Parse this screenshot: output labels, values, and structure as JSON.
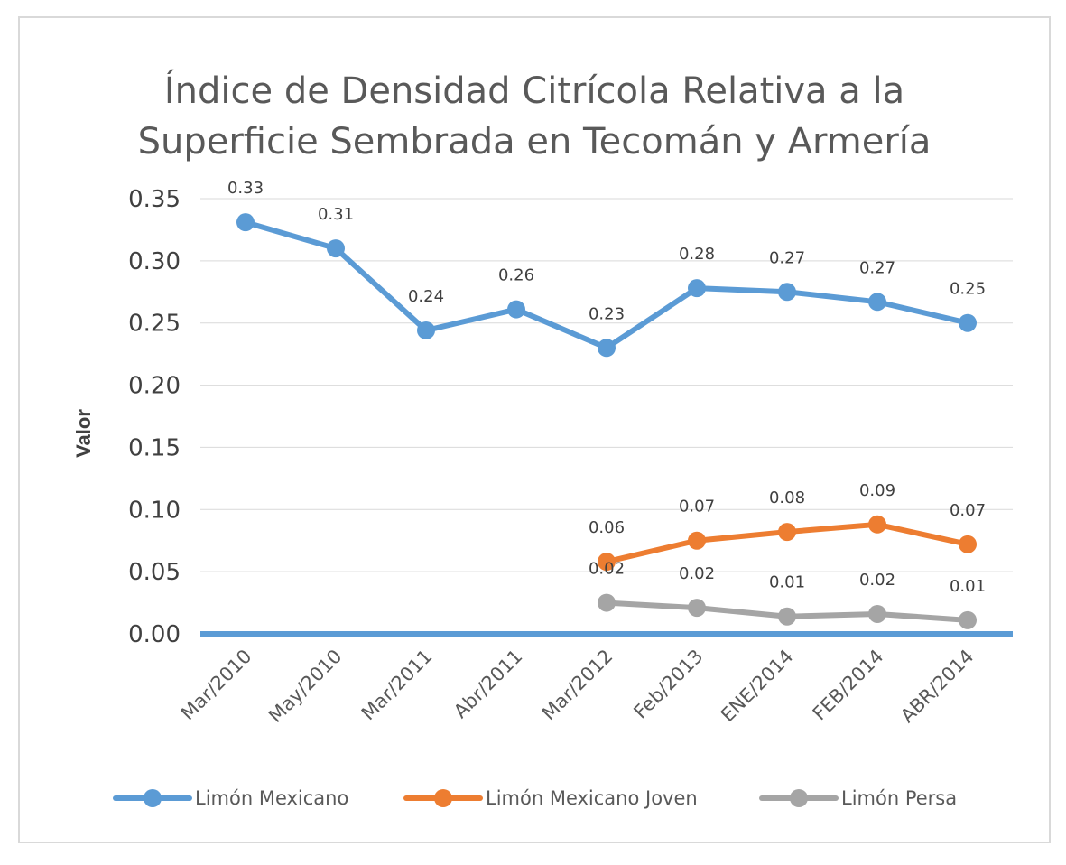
{
  "chart_data": {
    "type": "line",
    "title_lines": [
      "Índice de Densidad Citrícola Relativa a la",
      "Superficie Sembrada en Tecomán y Armería"
    ],
    "xlabel": "",
    "ylabel": "Valor",
    "ylim": [
      0,
      0.35
    ],
    "yticks": [
      "0.00",
      "0.05",
      "0.10",
      "0.15",
      "0.20",
      "0.25",
      "0.30",
      "0.35"
    ],
    "grid": true,
    "legend_position": "bottom",
    "categories": [
      "Mar/2010",
      "May/2010",
      "Mar/2011",
      "Abr/2011",
      "Mar/2012",
      "Feb/2013",
      "ENE/2014",
      "FEB/2014",
      "ABR/2014"
    ],
    "series": [
      {
        "name": "Limón Mexicano",
        "color": "#5b9bd5",
        "values": [
          0.331,
          0.31,
          0.244,
          0.261,
          0.23,
          0.278,
          0.275,
          0.267,
          0.25
        ],
        "labels": [
          "0.33",
          "0.31",
          "0.24",
          "0.26",
          "0.23",
          "0.28",
          "0.27",
          "0.27",
          "0.25"
        ]
      },
      {
        "name": "Limón Mexicano Joven",
        "color": "#ed7d31",
        "values": [
          null,
          null,
          null,
          null,
          0.058,
          0.075,
          0.082,
          0.088,
          0.072
        ],
        "labels": [
          null,
          null,
          null,
          null,
          "0.06",
          "0.07",
          "0.08",
          "0.09",
          "0.07"
        ]
      },
      {
        "name": "Limón Persa",
        "color": "#a5a5a5",
        "values": [
          null,
          null,
          null,
          null,
          0.025,
          0.021,
          0.014,
          0.016,
          0.011
        ],
        "labels": [
          null,
          null,
          null,
          null,
          "0.02",
          "0.02",
          "0.01",
          "0.02",
          "0.01"
        ]
      }
    ]
  }
}
